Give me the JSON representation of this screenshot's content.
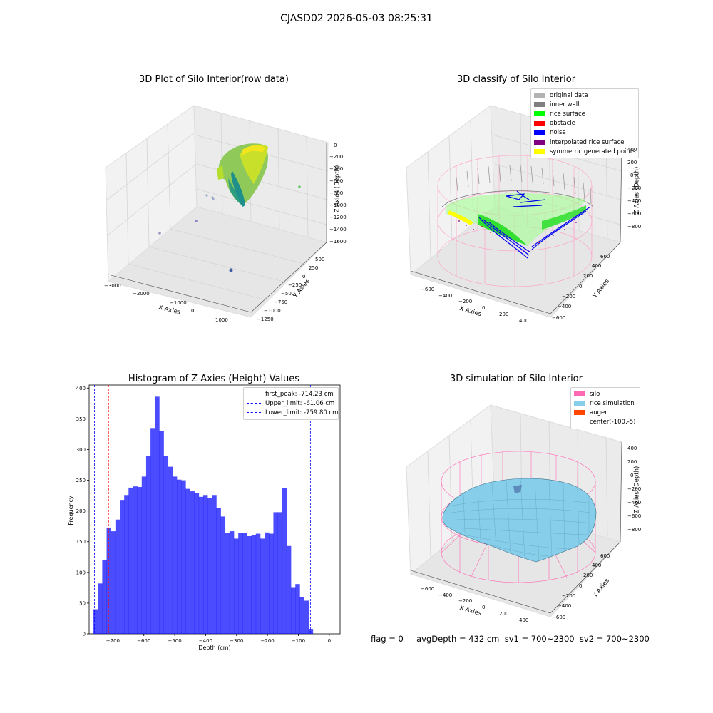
{
  "suptitle": "CJASD02 2026-05-03 08:25:31",
  "panels": {
    "tl": {
      "title": "3D Plot of Silo Interior(row data)",
      "xlabel": "X Axies",
      "ylabel": "Y Axies",
      "zlabel": "Z Axies (Depth)",
      "xticks": [
        "−3000",
        "−2000",
        "−1000",
        "0",
        "1000"
      ],
      "yticks": [
        "500",
        "250",
        "0",
        "−250",
        "−500",
        "−750",
        "−1000",
        "−1250"
      ],
      "zticks": [
        "0",
        "−200",
        "−400",
        "−600",
        "−800",
        "−1000",
        "−1200",
        "−1400",
        "−1600"
      ]
    },
    "tr": {
      "title": "3D classify of Silo Interior",
      "xlabel": "X Axies",
      "ylabel": "Y Axies",
      "zlabel": "Z Axies (Depth)",
      "xticks": [
        "−600",
        "−400",
        "−200",
        "0",
        "200",
        "400"
      ],
      "yticks": [
        "600",
        "400",
        "200",
        "0",
        "−200",
        "−400",
        "−600"
      ],
      "zticks": [
        "400",
        "200",
        "0",
        "−200",
        "−400",
        "−600",
        "−800"
      ],
      "legend": [
        {
          "label": "original data",
          "color": "#b3b3b3"
        },
        {
          "label": "inner wall",
          "color": "#808080"
        },
        {
          "label": "rice surface",
          "color": "#00ff00"
        },
        {
          "label": "obstacle",
          "color": "#ff0000"
        },
        {
          "label": "noise",
          "color": "#0000ff"
        },
        {
          "label": "interpolated rice surface",
          "color": "#800080"
        },
        {
          "label": "symmetric generated points",
          "color": "#ffff00"
        }
      ]
    },
    "br": {
      "title": "3D simulation of Silo Interior",
      "xlabel": "X Axies",
      "ylabel": "Y Axies",
      "zlabel": "Z Axies (Depth)",
      "xticks": [
        "−600",
        "−400",
        "−200",
        "0",
        "200",
        "400"
      ],
      "yticks": [
        "600",
        "400",
        "200",
        "0",
        "−200",
        "−400",
        "−600"
      ],
      "zticks": [
        "400",
        "200",
        "0",
        "−200",
        "−400",
        "−600",
        "−800"
      ],
      "legend": [
        {
          "label": "silo",
          "color": "#ff69b4"
        },
        {
          "label": "rice simulation",
          "color": "#87ceeb"
        },
        {
          "label": "auger",
          "color": "#ff4500"
        },
        {
          "label": "center(-100,-5)",
          "color": ""
        }
      ]
    }
  },
  "footer": "flag = 0     avgDepth = 432 cm  sv1 = 700~2300  sv2 = 700~2300",
  "chart_data": {
    "type": "bar",
    "title": "Histogram of Z-Axies (Height) Values",
    "xlabel": "Depth (cm)",
    "ylabel": "Frequency",
    "xlim": [
      -777,
      35
    ],
    "ylim": [
      0,
      405
    ],
    "xticks": [
      -700,
      -600,
      -500,
      -400,
      -300,
      -200,
      -100,
      0
    ],
    "xtick_labels": [
      "−700",
      "−600",
      "−500",
      "−400",
      "−300",
      "−200",
      "−100",
      "0"
    ],
    "yticks": [
      0,
      50,
      100,
      150,
      200,
      250,
      300,
      350,
      400
    ],
    "bin_start": -763,
    "bin_width": 14.2,
    "values": [
      40,
      82,
      120,
      173,
      167,
      186,
      218,
      226,
      238,
      240,
      239,
      256,
      290,
      335,
      386,
      330,
      290,
      272,
      256,
      251,
      250,
      236,
      232,
      229,
      223,
      226,
      221,
      226,
      205,
      191,
      164,
      167,
      155,
      164,
      164,
      159,
      161,
      163,
      155,
      165,
      163,
      198,
      198,
      237,
      143,
      76,
      81,
      60,
      54,
      8
    ],
    "bar_color": "#0000ff",
    "lines": [
      {
        "label": "first_peak: -714.23 cm",
        "x": -714.23,
        "color": "#ff0000"
      },
      {
        "label": "Upper_limit: -61.06 cm",
        "x": -61.06,
        "color": "#0000ff"
      },
      {
        "label": "Lower_limit: -759.80 cm",
        "x": -759.8,
        "color": "#0000ff"
      }
    ]
  }
}
